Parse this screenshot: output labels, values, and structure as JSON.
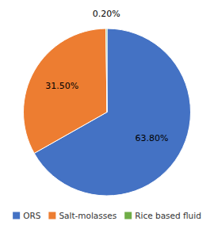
{
  "chart_data": {
    "type": "pie",
    "categories": [
      "ORS",
      "Salt-molasses",
      "Rice based fluid"
    ],
    "values": [
      63.8,
      31.5,
      0.2
    ],
    "value_labels": [
      "63.80%",
      "31.50%",
      "0.20%"
    ],
    "colors": [
      "#4472C4",
      "#ED7D31",
      "#70AD47"
    ],
    "data_labels": true,
    "legend": "bottom"
  }
}
